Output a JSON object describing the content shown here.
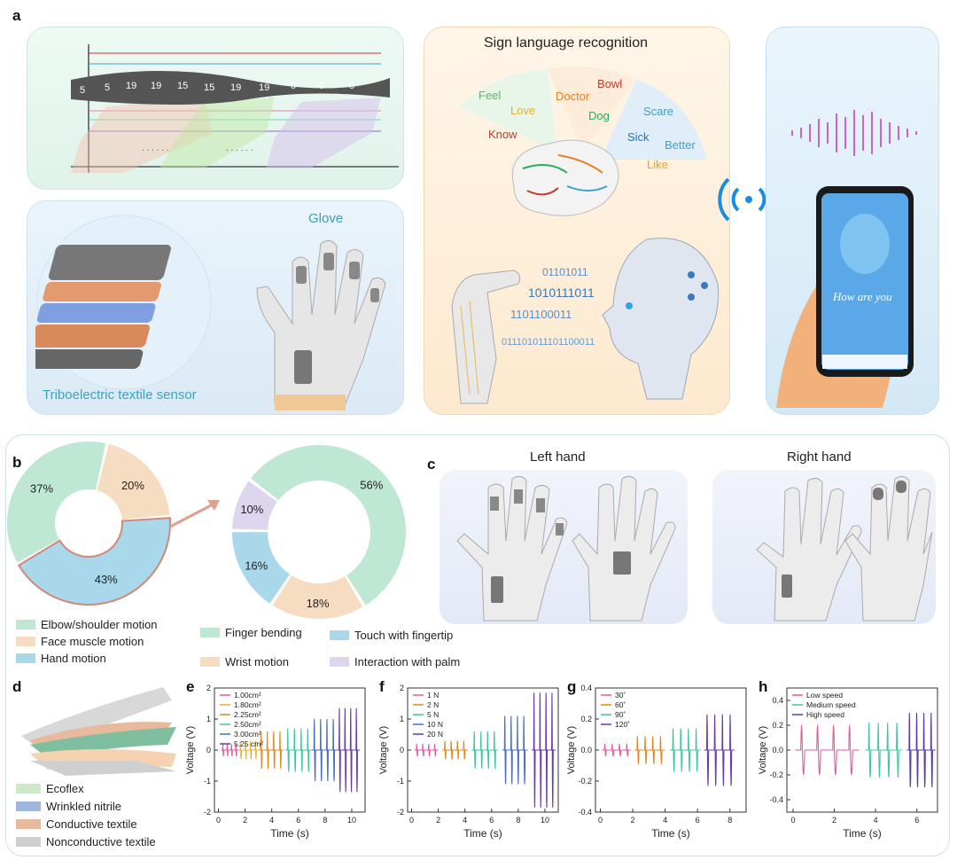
{
  "panel_a": {
    "letter": "a",
    "film_frames": [
      "5",
      "5",
      "19",
      "19",
      "15",
      "15",
      "19",
      "19",
      "0",
      "0",
      "0"
    ],
    "dots": ". . . . . .",
    "sign_title": "Sign language recognition",
    "words": [
      {
        "text": "Feel",
        "color": "#5cb85c"
      },
      {
        "text": "Love",
        "color": "#e5b22a"
      },
      {
        "text": "Know",
        "color": "#c0392b"
      },
      {
        "text": "Doctor",
        "color": "#e67e22"
      },
      {
        "text": "Bowl",
        "color": "#c0392b"
      },
      {
        "text": "Dog",
        "color": "#27ae60"
      },
      {
        "text": "Scare",
        "color": "#3aa0d0"
      },
      {
        "text": "Sick",
        "color": "#2a6fb0"
      },
      {
        "text": "Better",
        "color": "#3aa0d0"
      },
      {
        "text": "Like",
        "color": "#e5a02a"
      }
    ],
    "binary": [
      "01101011",
      "1010111011",
      "1101100011",
      "011101011101100011"
    ],
    "glove_label": "Glove",
    "sensor_label": "Triboelectric textile sensor",
    "phone_text": "How are you"
  },
  "panel_b": {
    "letter": "b",
    "chart_data": [
      {
        "type": "pie",
        "categories": [
          "Elbow/shoulder motion",
          "Face muscle motion",
          "Hand motion"
        ],
        "values": [
          37,
          20,
          43
        ],
        "labels": [
          "37%",
          "20%",
          "43%"
        ],
        "colors": [
          "#bfe8d4",
          "#f6dcc0",
          "#a9d8ea"
        ]
      },
      {
        "type": "pie",
        "categories": [
          "Finger bending",
          "Wrist motion",
          "Touch with fingertip",
          "Interaction with palm"
        ],
        "values": [
          56,
          18,
          16,
          10
        ],
        "labels": [
          "56%",
          "18%",
          "16%",
          "10%"
        ],
        "colors": [
          "#bfe8d4",
          "#f6dcc0",
          "#a9d8ea",
          "#ddd6ee"
        ]
      }
    ]
  },
  "panel_c": {
    "letter": "c",
    "left_title": "Left hand",
    "right_title": "Right hand"
  },
  "panel_d": {
    "letter": "d",
    "legend": [
      {
        "label": "Ecoflex",
        "color": "#cfe9c8"
      },
      {
        "label": "Wrinkled nitrile",
        "color": "#9eb6dc"
      },
      {
        "label": "Conductive textile",
        "color": "#e8b99c"
      },
      {
        "label": "Nonconductive textile",
        "color": "#cfcfcf"
      }
    ]
  },
  "voltage_panels": [
    {
      "letter": "e",
      "chart_data": {
        "type": "line",
        "xlabel": "Time (s)",
        "ylabel": "Voltage (V)",
        "xlim": [
          -0.3,
          11
        ],
        "ylim": [
          -2,
          2
        ],
        "xticks": [
          "0",
          "2",
          "4",
          "6",
          "8",
          "10"
        ],
        "yticks": [
          "-2",
          "-1",
          "0",
          "1",
          "2"
        ],
        "series": [
          {
            "name": "1.00cm²",
            "color": "#e05aa0",
            "start": 0.2,
            "end": 1.5,
            "n": 4,
            "amp": 0.2
          },
          {
            "name": "1.80cm²",
            "color": "#e5b43a",
            "start": 1.5,
            "end": 3.0,
            "n": 4,
            "amp": 0.3
          },
          {
            "name": "2.25cm²",
            "color": "#e08a1e",
            "start": 3.0,
            "end": 4.9,
            "n": 4,
            "amp": 0.6
          },
          {
            "name": "2.50cm²",
            "color": "#3cc8a0",
            "start": 5.0,
            "end": 7.0,
            "n": 4,
            "amp": 0.7
          },
          {
            "name": "3.00cm²",
            "color": "#4a6cc8",
            "start": 7.0,
            "end": 8.9,
            "n": 4,
            "amp": 1.0
          },
          {
            "name": "5.25 cm²",
            "color": "#6a3aa8",
            "start": 8.9,
            "end": 10.6,
            "n": 4,
            "amp": 1.35
          }
        ]
      }
    },
    {
      "letter": "f",
      "chart_data": {
        "type": "line",
        "xlabel": "Time (s)",
        "ylabel": "Voltage (V)",
        "xlim": [
          -0.3,
          11
        ],
        "ylim": [
          -2,
          2
        ],
        "xticks": [
          "0",
          "2",
          "4",
          "6",
          "8",
          "10"
        ],
        "yticks": [
          "-2",
          "-1",
          "0",
          "1",
          "2"
        ],
        "series": [
          {
            "name": "1 N",
            "color": "#e05aa0",
            "start": 0.2,
            "end": 2.0,
            "n": 4,
            "amp": 0.2
          },
          {
            "name": "2 N",
            "color": "#e08a1e",
            "start": 2.3,
            "end": 4.2,
            "n": 4,
            "amp": 0.3
          },
          {
            "name": "5 N",
            "color": "#3cc8a0",
            "start": 4.5,
            "end": 6.5,
            "n": 4,
            "amp": 0.6
          },
          {
            "name": "10 N",
            "color": "#4a6cc8",
            "start": 6.8,
            "end": 8.7,
            "n": 4,
            "amp": 1.1
          },
          {
            "name": "20 N",
            "color": "#6a3aa8",
            "start": 9.0,
            "end": 10.8,
            "n": 4,
            "amp": 1.85
          }
        ]
      }
    },
    {
      "letter": "g",
      "chart_data": {
        "type": "line",
        "xlabel": "Time (s)",
        "ylabel": "Voltage (V)",
        "xlim": [
          -0.3,
          9
        ],
        "ylim": [
          -0.4,
          0.4
        ],
        "xticks": [
          "0",
          "2",
          "4",
          "6",
          "8"
        ],
        "yticks": [
          "-0.4",
          "-0.2",
          "0.0",
          "0.2",
          "0.4"
        ],
        "series": [
          {
            "name": "30˚",
            "color": "#e05aa0",
            "start": 0.1,
            "end": 1.9,
            "n": 4,
            "amp": 0.04
          },
          {
            "name": "60˚",
            "color": "#e08a1e",
            "start": 2.1,
            "end": 4.0,
            "n": 4,
            "amp": 0.09
          },
          {
            "name": "90˚",
            "color": "#3cc8a0",
            "start": 4.3,
            "end": 6.2,
            "n": 4,
            "amp": 0.14
          },
          {
            "name": "120˚",
            "color": "#6a3aa8",
            "start": 6.4,
            "end": 8.3,
            "n": 4,
            "amp": 0.23
          }
        ]
      }
    },
    {
      "letter": "h",
      "chart_data": {
        "type": "line",
        "xlabel": "Time (s)",
        "ylabel": "Voltage (V)",
        "xlim": [
          -0.3,
          7
        ],
        "ylim": [
          -0.5,
          0.5
        ],
        "xticks": [
          "0",
          "2",
          "4",
          "6"
        ],
        "yticks": [
          "-0.4",
          "-0.2",
          "0.0",
          "0.2",
          "0.4"
        ],
        "series": [
          {
            "name": "Low speed",
            "color": "#e05aa0",
            "start": 0.1,
            "end": 3.2,
            "n": 4,
            "amp": 0.2
          },
          {
            "name": "Medium speed",
            "color": "#3cc8a0",
            "start": 3.5,
            "end": 5.3,
            "n": 4,
            "amp": 0.22
          },
          {
            "name": "High speed",
            "color": "#5a3aa8",
            "start": 5.5,
            "end": 6.9,
            "n": 4,
            "amp": 0.3
          }
        ]
      }
    }
  ]
}
